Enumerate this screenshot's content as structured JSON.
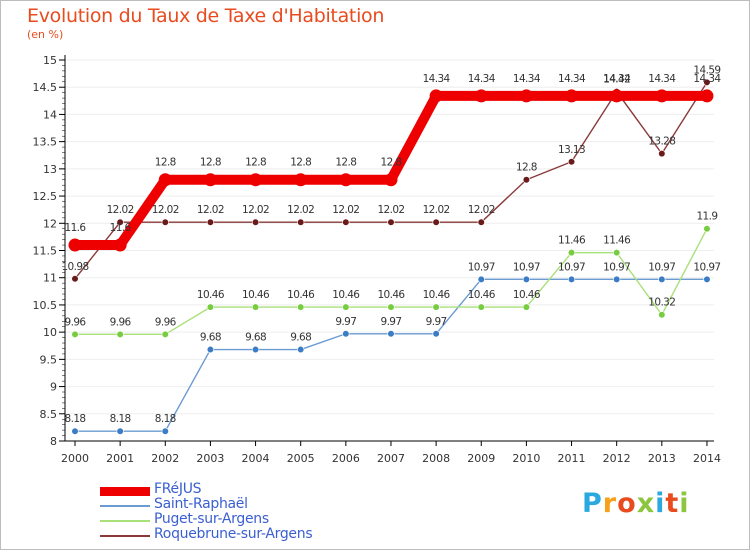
{
  "colors": {
    "title": "#e84b1e",
    "legend_text": "#3a5fd0",
    "axis": "#000000",
    "label": "#333333"
  },
  "page": {
    "title": "Evolution du Taux de Taxe d'Habitation",
    "unit": "(en %)"
  },
  "brand": {
    "logo": "Proxiti",
    "logo_colors": [
      "#2aa8e0",
      "#f7a11a",
      "#e84b1e",
      "#8cc63f",
      "#2aa8e0",
      "#e84b1e",
      "#8cc63f"
    ]
  },
  "chart_data": {
    "type": "line",
    "title": "Evolution du Taux de Taxe d'Habitation",
    "ylabel": "(en %)",
    "xlabel": "",
    "x": [
      "2000",
      "2001",
      "2002",
      "2003",
      "2004",
      "2005",
      "2006",
      "2007",
      "2008",
      "2009",
      "2010",
      "2011",
      "2012",
      "2013",
      "2014"
    ],
    "ylim": [
      8,
      15
    ],
    "yticks": [
      "8",
      "8.5",
      "9",
      "9.5",
      "10",
      "10.5",
      "11",
      "11.5",
      "12",
      "12.5",
      "13",
      "13.5",
      "14",
      "14.5",
      "15"
    ],
    "legend_position": "bottom-left",
    "series": [
      {
        "name": "FRéJUS",
        "color": "#ee0000",
        "style": "thick",
        "values": [
          11.6,
          11.6,
          12.8,
          12.8,
          12.8,
          12.8,
          12.8,
          12.8,
          14.34,
          14.34,
          14.34,
          14.34,
          14.34,
          14.34,
          14.34
        ],
        "labels": [
          "11.6",
          "11.6",
          "12.8",
          "12.8",
          "12.8",
          "12.8",
          "12.8",
          "12.8",
          "14.34",
          "14.34",
          "14.34",
          "14.34",
          "14.34",
          "14.34",
          "14.34"
        ]
      },
      {
        "name": "Saint-Raphaël",
        "color": "#6a9bd1",
        "marker": "#3b7cc4",
        "style": "thin",
        "values": [
          8.18,
          8.18,
          8.18,
          9.68,
          9.68,
          9.68,
          9.97,
          9.97,
          9.97,
          10.97,
          10.97,
          10.97,
          10.97,
          10.97,
          10.97
        ],
        "labels": [
          "8.18",
          "8.18",
          "8.18",
          "9.68",
          "9.68",
          "9.68",
          "9.97",
          "9.97",
          "9.97",
          "10.97",
          "10.97",
          "10.97",
          "10.97",
          "10.97",
          "10.97"
        ]
      },
      {
        "name": "Puget-sur-Argens",
        "color": "#a8e07a",
        "marker": "#77cc40",
        "style": "thin",
        "values": [
          9.96,
          9.96,
          9.96,
          10.46,
          10.46,
          10.46,
          10.46,
          10.46,
          10.46,
          10.46,
          10.46,
          11.46,
          11.46,
          10.32,
          11.9
        ],
        "labels": [
          "9.96",
          "9.96",
          "9.96",
          "10.46",
          "10.46",
          "10.46",
          "10.46",
          "10.46",
          "10.46",
          "10.46",
          "10.46",
          "11.46",
          "11.46",
          "10.32",
          "11.9"
        ]
      },
      {
        "name": "Roquebrune-sur-Argens",
        "color": "#8b3a3a",
        "marker": "#6a1a1a",
        "style": "thin",
        "values": [
          10.98,
          12.02,
          12.02,
          12.02,
          12.02,
          12.02,
          12.02,
          12.02,
          12.02,
          12.02,
          12.8,
          13.13,
          14.42,
          13.28,
          14.59
        ],
        "labels": [
          "10.98",
          "12.02",
          "12.02",
          "12.02",
          "12.02",
          "12.02",
          "12.02",
          "12.02",
          "12.02",
          "12.02",
          "12.8",
          "13.13",
          "14.42",
          "13.28",
          "14.59"
        ]
      }
    ]
  }
}
